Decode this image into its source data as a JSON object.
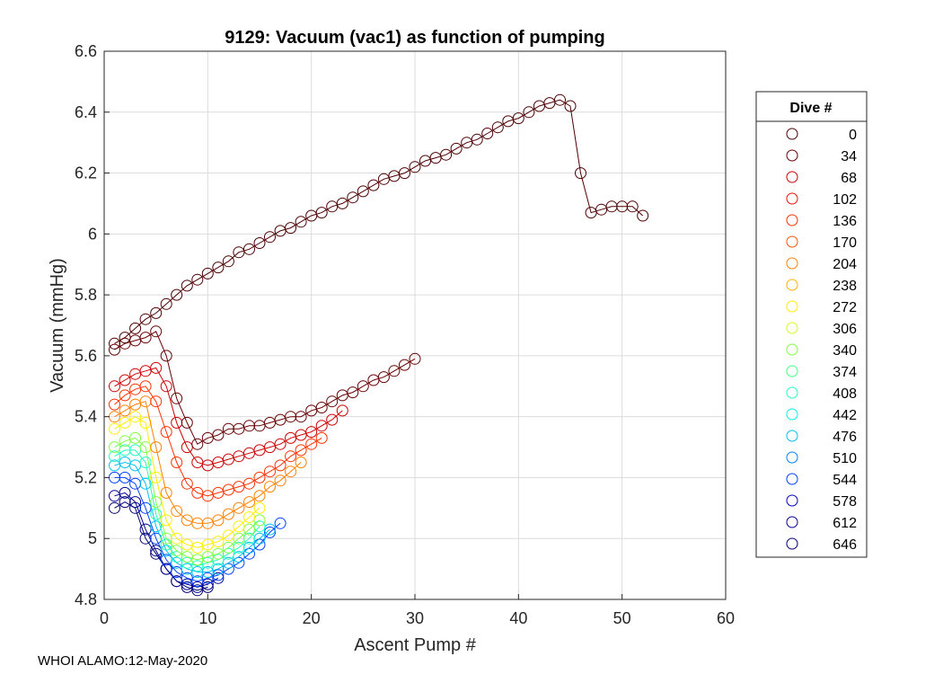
{
  "chart_data": {
    "type": "line",
    "title": "9129: Vacuum (vac1) as function of pumping",
    "xlabel": "Ascent Pump #",
    "ylabel": "Vacuum (mmHg)",
    "xlim": [
      0,
      60
    ],
    "ylim": [
      4.8,
      6.6
    ],
    "xticks": [
      "0",
      "10",
      "20",
      "30",
      "40",
      "50",
      "60"
    ],
    "yticks": [
      "4.8",
      "5",
      "5.2",
      "5.4",
      "5.6",
      "5.8",
      "6",
      "6.2",
      "6.4",
      "6.6"
    ],
    "grid": true,
    "marker": "open-circle",
    "legend": {
      "title": "Dive #",
      "placement": "right-outside",
      "entries": [
        "0",
        "34",
        "68",
        "102",
        "136",
        "170",
        "204",
        "238",
        "272",
        "306",
        "340",
        "374",
        "408",
        "442",
        "476",
        "510",
        "544",
        "578",
        "612",
        "646"
      ],
      "colors": [
        "#4d0000",
        "#660000",
        "#cc0000",
        "#ee1000",
        "#ff3000",
        "#ff5500",
        "#ff8000",
        "#ffb000",
        "#ffee00",
        "#ccff20",
        "#80ff40",
        "#40ff80",
        "#20ffc0",
        "#00f0f0",
        "#00c0f0",
        "#0080ff",
        "#0040ff",
        "#0000c0",
        "#000090",
        "#000070"
      ]
    },
    "series": [
      {
        "name": "0",
        "color": "#4d0000",
        "x": [
          1,
          2,
          3,
          4,
          5,
          6,
          7,
          8,
          9,
          10,
          11,
          12,
          13,
          14,
          15,
          16,
          17,
          18,
          19,
          20,
          21,
          22,
          23,
          24,
          25,
          26,
          27,
          28,
          29,
          30,
          31,
          32,
          33,
          34,
          35,
          36,
          37,
          38,
          39,
          40,
          41,
          42,
          43,
          44,
          45,
          46,
          47,
          48,
          49,
          50,
          51,
          52
        ],
        "y": [
          5.64,
          5.66,
          5.69,
          5.72,
          5.74,
          5.77,
          5.8,
          5.83,
          5.85,
          5.87,
          5.89,
          5.91,
          5.94,
          5.95,
          5.97,
          5.99,
          6.01,
          6.02,
          6.04,
          6.06,
          6.07,
          6.09,
          6.1,
          6.12,
          6.14,
          6.16,
          6.18,
          6.19,
          6.2,
          6.22,
          6.24,
          6.25,
          6.26,
          6.28,
          6.3,
          6.31,
          6.33,
          6.35,
          6.37,
          6.38,
          6.4,
          6.42,
          6.43,
          6.44,
          6.42,
          6.2,
          6.07,
          6.08,
          6.09,
          6.09,
          6.09,
          6.06
        ]
      },
      {
        "name": "34",
        "color": "#660000",
        "x": [
          1,
          2,
          3,
          4,
          5,
          6,
          7,
          8,
          9,
          10,
          11,
          12,
          13,
          14,
          15,
          16,
          17,
          18,
          19,
          20,
          21,
          22,
          23,
          24,
          25,
          26,
          27,
          28,
          29,
          30
        ],
        "y": [
          5.62,
          5.64,
          5.65,
          5.66,
          5.68,
          5.6,
          5.46,
          5.38,
          5.31,
          5.33,
          5.34,
          5.36,
          5.36,
          5.37,
          5.37,
          5.38,
          5.39,
          5.4,
          5.4,
          5.42,
          5.43,
          5.45,
          5.47,
          5.48,
          5.5,
          5.52,
          5.53,
          5.55,
          5.57,
          5.59
        ]
      },
      {
        "name": "68",
        "color": "#cc0000",
        "x": [
          1,
          2,
          3,
          4,
          5,
          6,
          7,
          8,
          9,
          10,
          11,
          12,
          13,
          14,
          15,
          16,
          17,
          18,
          19,
          20,
          21,
          22,
          23
        ],
        "y": [
          5.5,
          5.52,
          5.54,
          5.55,
          5.56,
          5.5,
          5.38,
          5.3,
          5.25,
          5.24,
          5.25,
          5.26,
          5.27,
          5.28,
          5.29,
          5.3,
          5.31,
          5.33,
          5.34,
          5.35,
          5.37,
          5.39,
          5.42
        ]
      },
      {
        "name": "136",
        "color": "#ff3000",
        "x": [
          1,
          2,
          3,
          4,
          5,
          6,
          7,
          8,
          9,
          10,
          11,
          12,
          13,
          14,
          15,
          16,
          17,
          18,
          19,
          20,
          21
        ],
        "y": [
          5.44,
          5.47,
          5.49,
          5.5,
          5.45,
          5.35,
          5.25,
          5.18,
          5.15,
          5.14,
          5.15,
          5.16,
          5.17,
          5.18,
          5.2,
          5.22,
          5.24,
          5.27,
          5.29,
          5.31,
          5.33
        ]
      },
      {
        "name": "204",
        "color": "#ff8000",
        "x": [
          1,
          2,
          3,
          4,
          5,
          6,
          7,
          8,
          9,
          10,
          11,
          12,
          13,
          14,
          15,
          16,
          17,
          18,
          19
        ],
        "y": [
          5.4,
          5.42,
          5.44,
          5.45,
          5.3,
          5.15,
          5.09,
          5.06,
          5.05,
          5.05,
          5.06,
          5.08,
          5.1,
          5.12,
          5.14,
          5.17,
          5.19,
          5.22,
          5.25
        ]
      },
      {
        "name": "272",
        "color": "#ffee00",
        "x": [
          1,
          2,
          3,
          4,
          5,
          6,
          7,
          8,
          9,
          10,
          11,
          12,
          13,
          14,
          15
        ],
        "y": [
          5.36,
          5.38,
          5.4,
          5.38,
          5.2,
          5.06,
          5.0,
          4.98,
          4.97,
          4.98,
          4.99,
          5.01,
          5.04,
          5.07,
          5.1
        ]
      },
      {
        "name": "340",
        "color": "#80ff40",
        "x": [
          1,
          2,
          3,
          4,
          5,
          6,
          7,
          8,
          9,
          10,
          11,
          12,
          13,
          14,
          15
        ],
        "y": [
          5.3,
          5.32,
          5.33,
          5.3,
          5.12,
          5.0,
          4.96,
          4.94,
          4.93,
          4.94,
          4.95,
          4.97,
          5.0,
          5.03,
          5.06
        ]
      },
      {
        "name": "408",
        "color": "#20ffc0",
        "x": [
          1,
          2,
          3,
          4,
          5,
          6,
          7,
          8,
          9,
          10,
          11,
          12,
          13,
          14,
          15
        ],
        "y": [
          5.27,
          5.29,
          5.29,
          5.25,
          5.08,
          4.98,
          4.94,
          4.92,
          4.91,
          4.92,
          4.93,
          4.95,
          4.97,
          5.0,
          5.04
        ]
      },
      {
        "name": "476",
        "color": "#00c0f0",
        "x": [
          1,
          2,
          3,
          4,
          5,
          6,
          7,
          8,
          9,
          10,
          11,
          12,
          13,
          14,
          15,
          16
        ],
        "y": [
          5.24,
          5.25,
          5.24,
          5.18,
          5.04,
          4.96,
          4.92,
          4.9,
          4.89,
          4.89,
          4.9,
          4.92,
          4.94,
          4.97,
          5.0,
          5.03
        ]
      },
      {
        "name": "544",
        "color": "#0040ff",
        "x": [
          1,
          2,
          3,
          4,
          5,
          6,
          7,
          8,
          9,
          10,
          11,
          12,
          13,
          14,
          15,
          16,
          17
        ],
        "y": [
          5.2,
          5.2,
          5.18,
          5.1,
          5.0,
          4.93,
          4.89,
          4.87,
          4.86,
          4.87,
          4.88,
          4.9,
          4.92,
          4.95,
          4.98,
          5.02,
          5.05
        ]
      },
      {
        "name": "612",
        "color": "#000090",
        "x": [
          1,
          2,
          3,
          4,
          5,
          6,
          7,
          8,
          9,
          10,
          11
        ],
        "y": [
          5.14,
          5.15,
          5.12,
          5.03,
          4.96,
          4.9,
          4.86,
          4.85,
          4.84,
          4.85,
          4.87
        ]
      },
      {
        "name": "646",
        "color": "#000070",
        "x": [
          1,
          2,
          3,
          4,
          5,
          6,
          7,
          8,
          9,
          10
        ],
        "y": [
          5.1,
          5.12,
          5.1,
          5.0,
          4.95,
          4.9,
          4.86,
          4.84,
          4.83,
          4.84
        ]
      }
    ]
  },
  "footer": "WHOI ALAMO:12-May-2020"
}
